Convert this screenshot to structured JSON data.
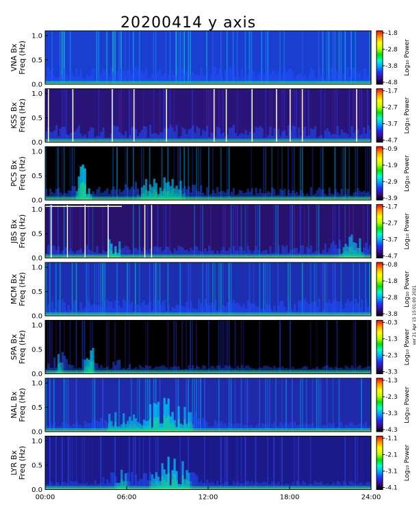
{
  "title": "20200414 y axis",
  "side_note": "ver 21 Apr 15 15:01:00 2021",
  "chart_data": {
    "type": "heatmap",
    "title": "20200414 y axis",
    "x_tick_labels": [
      "00:00",
      "06:00",
      "12:00",
      "18:00",
      "24:00"
    ],
    "x_range_hours": [
      0,
      24
    ],
    "y_ticks": [
      "0.0",
      "0.5",
      "1.0"
    ],
    "y_range": [
      0,
      1.1
    ],
    "ylabel_second_line": "Freq (Hz)",
    "colorbar_label": "Log₁₀ Power",
    "colorbar_colors": [
      "#000000",
      "#3b0a8c",
      "#2030ff",
      "#00aaff",
      "#00ffcc",
      "#00e000",
      "#c8ff00",
      "#ffff00",
      "#ff9900",
      "#ff0000"
    ],
    "panels": [
      {
        "station": "VNA Bx",
        "cbar_ticks": [
          "-1.8",
          "-2.8",
          "-3.8",
          "-4.8"
        ],
        "style": "vna"
      },
      {
        "station": "KSS Bx",
        "cbar_ticks": [
          "-1.7",
          "-2.7",
          "-3.7",
          "-4.7"
        ],
        "style": "kss"
      },
      {
        "station": "PCS Bx",
        "cbar_ticks": [
          "-0.9",
          "-1.9",
          "-2.9",
          "-3.9"
        ],
        "style": "pcs"
      },
      {
        "station": "JBS Bx",
        "cbar_ticks": [
          "-1.7",
          "-2.7",
          "-3.7",
          "-4.7"
        ],
        "style": "jbs"
      },
      {
        "station": "MCM Bx",
        "cbar_ticks": [
          "-0.8",
          "-1.8",
          "-2.8",
          "-3.8"
        ],
        "style": "mcm"
      },
      {
        "station": "SPA Bx",
        "cbar_ticks": [
          "-0.3",
          "-1.3",
          "-2.3",
          "-3.3"
        ],
        "style": "spa"
      },
      {
        "station": "NAL Bx",
        "cbar_ticks": [
          "-1.3",
          "-2.3",
          "-3.3",
          "-4.3"
        ],
        "style": "nal"
      },
      {
        "station": "LYR Bx",
        "cbar_ticks": [
          "-1.1",
          "-2.1",
          "-3.1",
          "-4.1"
        ],
        "style": "lyr"
      }
    ]
  }
}
